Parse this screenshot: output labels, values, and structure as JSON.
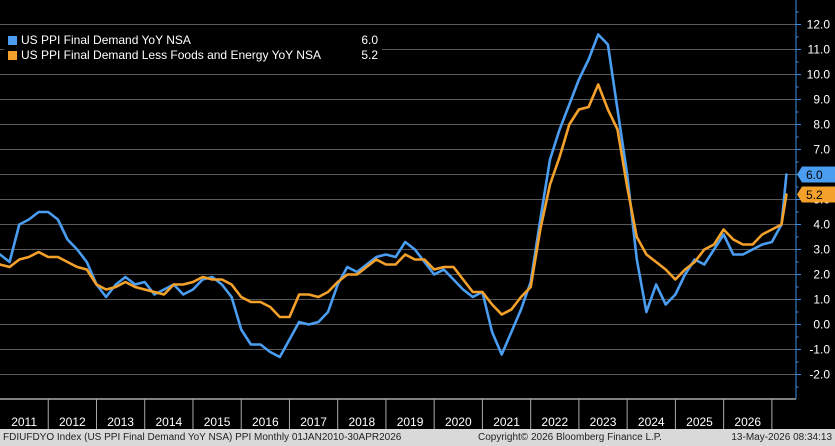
{
  "chart_data": {
    "type": "line",
    "y_axis_side": "right",
    "ylim": [
      -2.5,
      13.0
    ],
    "y_ticks": [
      "-2.0",
      "-1.0",
      "0.0",
      "1.0",
      "2.0",
      "3.0",
      "4.0",
      "5.0",
      "6.0",
      "7.0",
      "8.0",
      "9.0",
      "10.0",
      "11.0",
      "12.0"
    ],
    "year_labels": [
      "2011",
      "2012",
      "2013",
      "2014",
      "2015",
      "2016",
      "2017",
      "2018",
      "2019",
      "2020",
      "2021",
      "2022",
      "2023",
      "2024",
      "2025",
      "2026"
    ],
    "grid": true,
    "legend_position": "top-left",
    "series": [
      {
        "name": "US PPI Final Demand YoY NSA",
        "last_value_label": "6.0",
        "color": "#4a9df0",
        "points": [
          [
            2010.0,
            2.8
          ],
          [
            2010.2,
            2.5
          ],
          [
            2010.4,
            4.0
          ],
          [
            2010.6,
            4.2
          ],
          [
            2010.8,
            4.5
          ],
          [
            2011.0,
            4.5
          ],
          [
            2011.2,
            4.2
          ],
          [
            2011.4,
            3.4
          ],
          [
            2011.6,
            3.0
          ],
          [
            2011.8,
            2.5
          ],
          [
            2012.0,
            1.6
          ],
          [
            2012.2,
            1.1
          ],
          [
            2012.4,
            1.6
          ],
          [
            2012.6,
            1.9
          ],
          [
            2012.8,
            1.6
          ],
          [
            2013.0,
            1.7
          ],
          [
            2013.2,
            1.2
          ],
          [
            2013.4,
            1.4
          ],
          [
            2013.6,
            1.6
          ],
          [
            2013.8,
            1.2
          ],
          [
            2014.0,
            1.4
          ],
          [
            2014.2,
            1.8
          ],
          [
            2014.4,
            1.9
          ],
          [
            2014.6,
            1.6
          ],
          [
            2014.8,
            1.1
          ],
          [
            2015.0,
            -0.2
          ],
          [
            2015.2,
            -0.8
          ],
          [
            2015.4,
            -0.8
          ],
          [
            2015.6,
            -1.1
          ],
          [
            2015.8,
            -1.3
          ],
          [
            2016.0,
            -0.6
          ],
          [
            2016.2,
            0.1
          ],
          [
            2016.4,
            0.0
          ],
          [
            2016.6,
            0.1
          ],
          [
            2016.8,
            0.5
          ],
          [
            2017.0,
            1.6
          ],
          [
            2017.2,
            2.3
          ],
          [
            2017.4,
            2.1
          ],
          [
            2017.6,
            2.4
          ],
          [
            2017.8,
            2.7
          ],
          [
            2018.0,
            2.8
          ],
          [
            2018.2,
            2.7
          ],
          [
            2018.4,
            3.3
          ],
          [
            2018.6,
            3.0
          ],
          [
            2018.8,
            2.5
          ],
          [
            2019.0,
            2.0
          ],
          [
            2019.2,
            2.2
          ],
          [
            2019.4,
            1.8
          ],
          [
            2019.6,
            1.4
          ],
          [
            2019.8,
            1.1
          ],
          [
            2020.0,
            1.3
          ],
          [
            2020.2,
            -0.3
          ],
          [
            2020.4,
            -1.2
          ],
          [
            2020.6,
            -0.3
          ],
          [
            2020.8,
            0.6
          ],
          [
            2021.0,
            1.7
          ],
          [
            2021.2,
            4.2
          ],
          [
            2021.4,
            6.6
          ],
          [
            2021.6,
            7.8
          ],
          [
            2021.8,
            8.8
          ],
          [
            2022.0,
            9.8
          ],
          [
            2022.2,
            10.6
          ],
          [
            2022.4,
            11.6
          ],
          [
            2022.6,
            11.2
          ],
          [
            2022.8,
            8.6
          ],
          [
            2023.0,
            6.0
          ],
          [
            2023.2,
            2.6
          ],
          [
            2023.4,
            0.5
          ],
          [
            2023.6,
            1.6
          ],
          [
            2023.8,
            0.8
          ],
          [
            2024.0,
            1.2
          ],
          [
            2024.2,
            2.0
          ],
          [
            2024.4,
            2.6
          ],
          [
            2024.6,
            2.4
          ],
          [
            2024.8,
            3.0
          ],
          [
            2025.0,
            3.6
          ],
          [
            2025.2,
            2.8
          ],
          [
            2025.4,
            2.8
          ],
          [
            2025.6,
            3.0
          ],
          [
            2025.8,
            3.2
          ],
          [
            2026.0,
            3.3
          ],
          [
            2026.2,
            4.0
          ],
          [
            2026.3,
            6.0
          ]
        ]
      },
      {
        "name": "US PPI Final Demand Less Foods and Energy YoY NSA",
        "last_value_label": "5.2",
        "color": "#f4a12b",
        "points": [
          [
            2010.0,
            2.4
          ],
          [
            2010.2,
            2.3
          ],
          [
            2010.4,
            2.6
          ],
          [
            2010.6,
            2.7
          ],
          [
            2010.8,
            2.9
          ],
          [
            2011.0,
            2.7
          ],
          [
            2011.2,
            2.7
          ],
          [
            2011.4,
            2.5
          ],
          [
            2011.6,
            2.3
          ],
          [
            2011.8,
            2.2
          ],
          [
            2012.0,
            1.6
          ],
          [
            2012.2,
            1.4
          ],
          [
            2012.4,
            1.5
          ],
          [
            2012.6,
            1.7
          ],
          [
            2012.8,
            1.5
          ],
          [
            2013.0,
            1.4
          ],
          [
            2013.2,
            1.3
          ],
          [
            2013.4,
            1.2
          ],
          [
            2013.6,
            1.6
          ],
          [
            2013.8,
            1.6
          ],
          [
            2014.0,
            1.7
          ],
          [
            2014.2,
            1.9
          ],
          [
            2014.4,
            1.8
          ],
          [
            2014.6,
            1.8
          ],
          [
            2014.8,
            1.6
          ],
          [
            2015.0,
            1.1
          ],
          [
            2015.2,
            0.9
          ],
          [
            2015.4,
            0.9
          ],
          [
            2015.6,
            0.7
          ],
          [
            2015.8,
            0.3
          ],
          [
            2016.0,
            0.3
          ],
          [
            2016.2,
            1.2
          ],
          [
            2016.4,
            1.2
          ],
          [
            2016.6,
            1.1
          ],
          [
            2016.8,
            1.3
          ],
          [
            2017.0,
            1.7
          ],
          [
            2017.2,
            2.0
          ],
          [
            2017.4,
            2.0
          ],
          [
            2017.6,
            2.3
          ],
          [
            2017.8,
            2.6
          ],
          [
            2018.0,
            2.4
          ],
          [
            2018.2,
            2.4
          ],
          [
            2018.4,
            2.8
          ],
          [
            2018.6,
            2.6
          ],
          [
            2018.8,
            2.6
          ],
          [
            2019.0,
            2.2
          ],
          [
            2019.2,
            2.3
          ],
          [
            2019.4,
            2.3
          ],
          [
            2019.6,
            1.8
          ],
          [
            2019.8,
            1.3
          ],
          [
            2020.0,
            1.3
          ],
          [
            2020.2,
            0.8
          ],
          [
            2020.4,
            0.4
          ],
          [
            2020.6,
            0.6
          ],
          [
            2020.8,
            1.1
          ],
          [
            2021.0,
            1.5
          ],
          [
            2021.2,
            3.8
          ],
          [
            2021.4,
            5.6
          ],
          [
            2021.6,
            6.7
          ],
          [
            2021.8,
            8.0
          ],
          [
            2022.0,
            8.6
          ],
          [
            2022.2,
            8.7
          ],
          [
            2022.4,
            9.6
          ],
          [
            2022.6,
            8.6
          ],
          [
            2022.8,
            7.8
          ],
          [
            2023.0,
            5.5
          ],
          [
            2023.2,
            3.5
          ],
          [
            2023.4,
            2.8
          ],
          [
            2023.6,
            2.5
          ],
          [
            2023.8,
            2.2
          ],
          [
            2024.0,
            1.8
          ],
          [
            2024.2,
            2.2
          ],
          [
            2024.4,
            2.5
          ],
          [
            2024.6,
            3.0
          ],
          [
            2024.8,
            3.2
          ],
          [
            2025.0,
            3.8
          ],
          [
            2025.2,
            3.4
          ],
          [
            2025.4,
            3.2
          ],
          [
            2025.6,
            3.2
          ],
          [
            2025.8,
            3.6
          ],
          [
            2026.0,
            3.8
          ],
          [
            2026.2,
            4.0
          ],
          [
            2026.3,
            5.2
          ]
        ]
      }
    ]
  },
  "footer": {
    "left": "FDIUFDYO Index (US PPI Final Demand YoY NSA) PPI Monthly 01JAN2010-30APR2026",
    "center": "Copyright© 2026 Bloomberg Finance L.P.",
    "right": "13-May-2026 08:34:13"
  }
}
